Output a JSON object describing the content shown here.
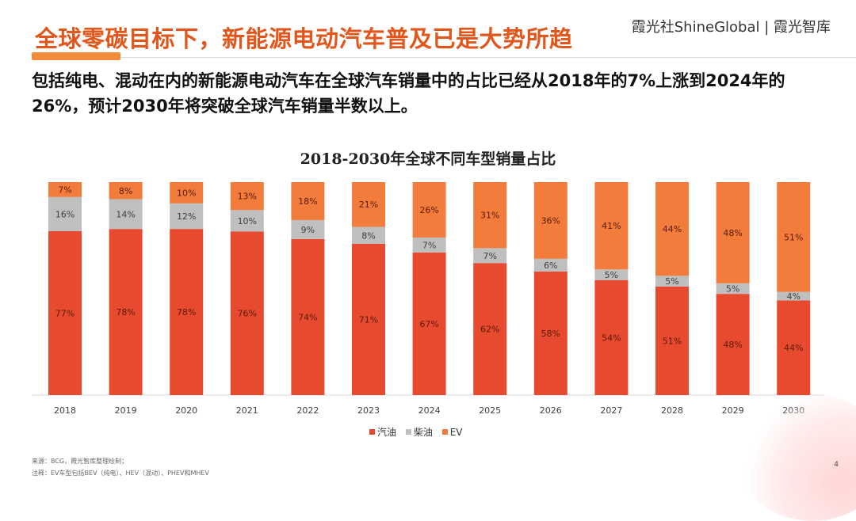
{
  "header": {
    "title": "全球零碳目标下，新能源电动汽车普及已是大势所趋",
    "brand": "霞光社ShineGlobal | 霞光智库"
  },
  "subtitle": "包括纯电、混动在内的新能源电动汽车在全球汽车销量中的占比已经从2018年的7%上涨到2024年的26%，预计2030年将突破全球汽车销量半数以上。",
  "footnotes": {
    "source": "来源：BCG，霞光智库整理绘制；",
    "note": "注释：EV车型包括BEV（纯电）、HEV（混动）、PHEV和MHEV"
  },
  "page_number": "4",
  "colors": {
    "gasoline": "#e84a2f",
    "diesel": "#bfbfbf",
    "ev": "#f27c3c",
    "accent": "#e2561b"
  },
  "chart_data": {
    "type": "bar",
    "stacked": true,
    "title": "2018-2030年全球不同车型销量占比",
    "categories": [
      "2018",
      "2019",
      "2020",
      "2021",
      "2022",
      "2023",
      "2024",
      "2025",
      "2026",
      "2027",
      "2028",
      "2029",
      "2030"
    ],
    "series": [
      {
        "name": "汽油",
        "values": [
          77,
          78,
          78,
          76,
          74,
          71,
          67,
          62,
          58,
          54,
          51,
          48,
          44
        ]
      },
      {
        "name": "柴油",
        "values": [
          16,
          14,
          12,
          10,
          9,
          8,
          7,
          7,
          6,
          5,
          5,
          5,
          4
        ]
      },
      {
        "name": "EV",
        "values": [
          7,
          8,
          10,
          13,
          18,
          21,
          26,
          31,
          36,
          41,
          44,
          48,
          51
        ]
      }
    ],
    "legend_position": "bottom",
    "grid": false
  }
}
